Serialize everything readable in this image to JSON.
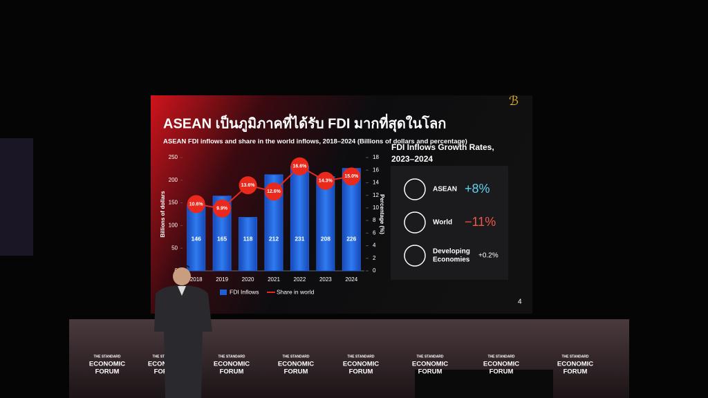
{
  "chart_data": {
    "type": "bar",
    "title": "ASEAN เป็นภูมิภาคที่ได้รับ FDI มากที่สุดในโลก",
    "subtitle": "ASEAN FDI inflows and share in the world inflows, 2018–2024 (Billions of dollars and percentage)",
    "ylabel": "Billions of dollars",
    "y2label": "Percentage (%)",
    "categories": [
      "2018",
      "2019",
      "2020",
      "2021",
      "2022",
      "2023",
      "2024"
    ],
    "series": [
      {
        "name": "FDI Inflows",
        "type": "bar",
        "color": "#1f5fd6",
        "values": [
          146,
          165,
          118,
          212,
          231,
          208,
          226
        ]
      },
      {
        "name": "Share in world",
        "type": "line",
        "axis": "y2",
        "color": "#e8291c",
        "values": [
          10.6,
          9.9,
          13.6,
          12.6,
          16.6,
          14.3,
          15.0
        ],
        "value_labels": [
          "10.6%",
          "9.9%",
          "13.6%",
          "12.6%",
          "16.6%",
          "14.3%",
          "15.0%"
        ]
      }
    ],
    "ylim": [
      0,
      250
    ],
    "yticks": [
      0,
      50,
      100,
      150,
      200,
      250
    ],
    "y2lim": [
      0,
      18
    ],
    "y2ticks": [
      0,
      2,
      4,
      6,
      8,
      10,
      12,
      14,
      16,
      18
    ],
    "legend": "bottom"
  },
  "panel": {
    "title": [
      "FDI Inflows Growth Rates,",
      "2023–2024"
    ],
    "rows": [
      {
        "label": [
          "ASEAN"
        ],
        "value": "+8%",
        "color": "#5fd3f0"
      },
      {
        "label": [
          "World"
        ],
        "value": "−11%",
        "color": "#f0564a"
      },
      {
        "label": [
          "Developing",
          "Economies"
        ],
        "value": "+0.2%",
        "color": "#ffffff"
      }
    ]
  },
  "slide_number": "4",
  "banner": {
    "top": "THE STANDARD",
    "main": [
      "ECONOMIC",
      "FORUM"
    ]
  }
}
